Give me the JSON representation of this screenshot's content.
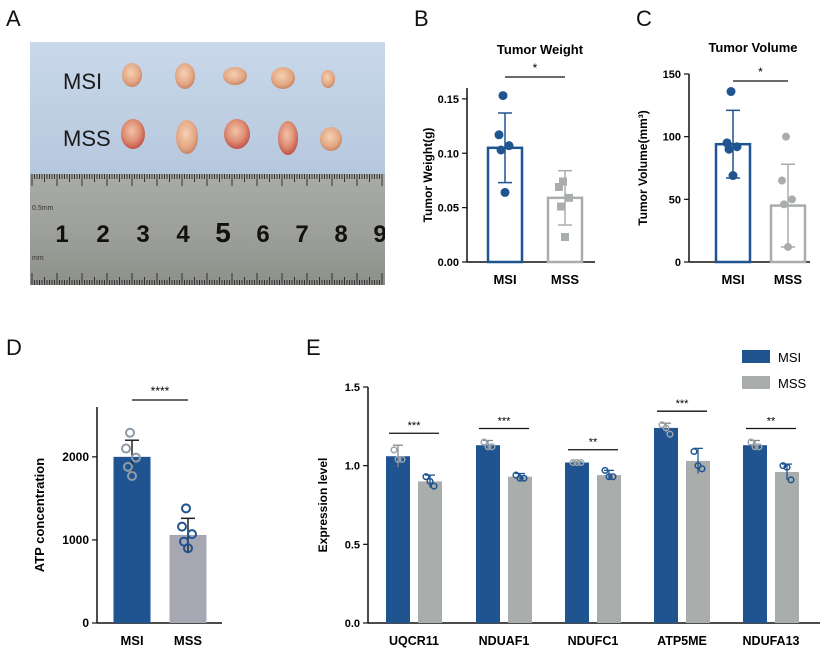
{
  "panels": {
    "A": "A",
    "B": "B",
    "C": "C",
    "D": "D",
    "E": "E"
  },
  "photo": {
    "row_labels": [
      "MSI",
      "MSS"
    ],
    "ruler_numbers": [
      "1",
      "2",
      "3",
      "4",
      "5",
      "6",
      "7",
      "8",
      "9"
    ],
    "ruler_unit": "0.5mm",
    "ruler_unit2": "mm"
  },
  "colors": {
    "msi": "#1F5490",
    "mss": "#A9ADAC",
    "mss_d": "#A6A7B2",
    "msi_point": "#1F5490",
    "mss_point": "#A9ADAC"
  },
  "chart_data": [
    {
      "id": "B",
      "type": "bar",
      "title": "Tumor Weight",
      "ylabel": "Tumor Weight(g)",
      "xlabel": "",
      "categories": [
        "MSI",
        "MSS"
      ],
      "values": [
        0.105,
        0.059
      ],
      "sd": [
        0.032,
        0.025
      ],
      "points": [
        [
          0.153,
          0.117,
          0.107,
          0.103,
          0.064
        ],
        [
          0.074,
          0.069,
          0.059,
          0.051,
          0.023
        ]
      ],
      "ylim": [
        0,
        0.16
      ],
      "yticks": [
        0.0,
        0.05,
        0.1,
        0.15
      ],
      "ytick_labels": [
        "0.00",
        "0.05",
        "0.10",
        "0.15"
      ],
      "significance": "*",
      "style": "outline"
    },
    {
      "id": "C",
      "type": "bar",
      "title": "Tumor Volume",
      "ylabel": "Tumor Volume(mm³)",
      "xlabel": "",
      "categories": [
        "MSI",
        "MSS"
      ],
      "values": [
        94,
        45
      ],
      "sd": [
        27,
        33
      ],
      "points": [
        [
          136,
          95,
          92,
          90,
          69
        ],
        [
          100,
          65,
          50,
          46,
          12
        ]
      ],
      "ylim": [
        0,
        150
      ],
      "yticks": [
        0,
        50,
        100,
        150
      ],
      "ytick_labels": [
        "0",
        "50",
        "100",
        "150"
      ],
      "significance": "*",
      "style": "outline"
    },
    {
      "id": "D",
      "type": "bar",
      "title": "",
      "ylabel": "ATP concentration",
      "xlabel": "",
      "categories": [
        "MSI",
        "MSS"
      ],
      "values": [
        2000,
        1060
      ],
      "sd": [
        200,
        200
      ],
      "points": [
        [
          2290,
          2100,
          1990,
          1880,
          1770
        ],
        [
          1380,
          1160,
          1070,
          980,
          900
        ]
      ],
      "ylim": [
        0,
        2600
      ],
      "yticks": [
        0,
        1000,
        2000
      ],
      "ytick_labels": [
        "0",
        "1000",
        "2000"
      ],
      "significance": "****",
      "style": "filled"
    },
    {
      "id": "E",
      "type": "bar",
      "title": "",
      "ylabel": "Expression level",
      "xlabel": "",
      "categories": [
        "UQCR11",
        "NDUAF1",
        "NDUFC1",
        "ATP5ME",
        "NDUFA13"
      ],
      "series": [
        {
          "name": "MSI",
          "values": [
            1.06,
            1.13,
            1.02,
            1.24,
            1.13
          ],
          "sd": [
            0.07,
            0.03,
            0.005,
            0.03,
            0.03
          ],
          "points": [
            [
              1.1,
              1.04,
              1.04
            ],
            [
              1.15,
              1.12,
              1.12
            ],
            [
              1.02,
              1.02,
              1.02
            ],
            [
              1.26,
              1.24,
              1.2
            ],
            [
              1.15,
              1.12,
              1.12
            ]
          ]
        },
        {
          "name": "MSS",
          "values": [
            0.9,
            0.93,
            0.94,
            1.03,
            0.96
          ],
          "sd": [
            0.04,
            0.02,
            0.03,
            0.08,
            0.05
          ],
          "points": [
            [
              0.93,
              0.9,
              0.87
            ],
            [
              0.94,
              0.92,
              0.92
            ],
            [
              0.97,
              0.93,
              0.93
            ],
            [
              1.09,
              1.0,
              0.98
            ],
            [
              1.0,
              0.99,
              0.91
            ]
          ]
        }
      ],
      "significance": [
        "***",
        "***",
        "**",
        "***",
        "**"
      ],
      "ylim": [
        0,
        1.5
      ],
      "yticks": [
        0.0,
        0.5,
        1.0,
        1.5
      ],
      "ytick_labels": [
        "0.0",
        "0.5",
        "1.0",
        "1.5"
      ],
      "legend": [
        "MSI",
        "MSS"
      ],
      "legend_position": "top-right"
    }
  ]
}
